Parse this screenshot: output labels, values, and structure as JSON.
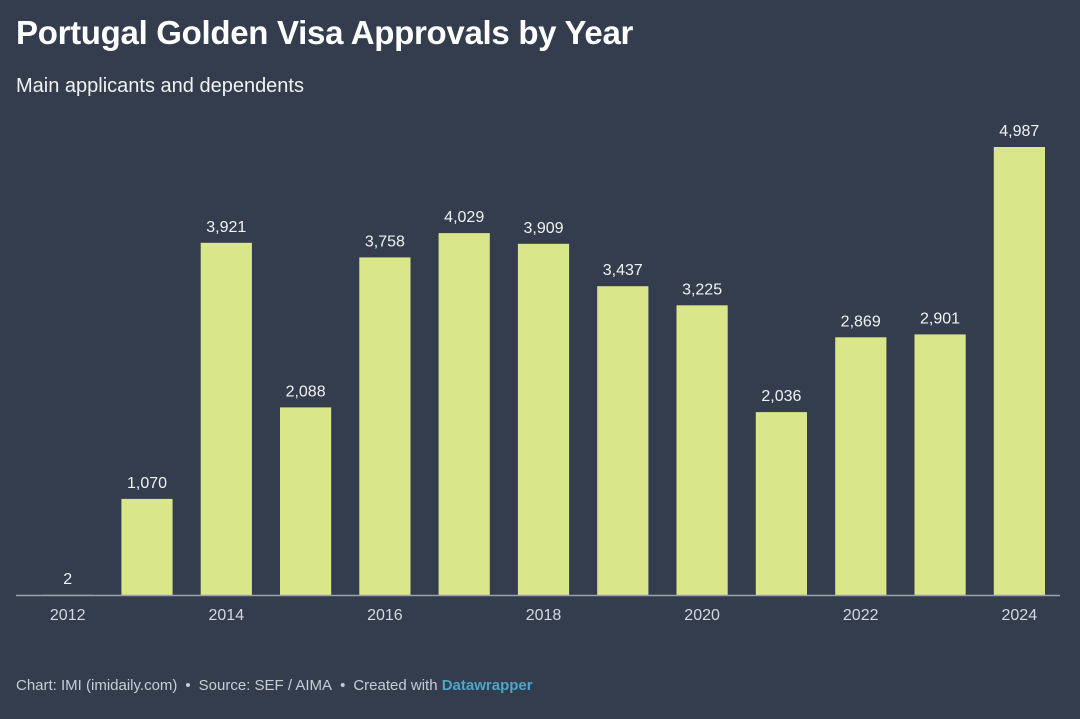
{
  "header": {
    "title": "Portugal Golden Visa Approvals by Year",
    "subtitle": "Main applicants and dependents"
  },
  "footer": {
    "chart_credit": "Chart: IMI (imidaily.com)",
    "separator": "•",
    "source": "Source: SEF / AIMA",
    "created_with": "Created with",
    "tool": "Datawrapper"
  },
  "colors": {
    "background": "#343d4e",
    "bar": "#d9e68a",
    "label": "#f2f2f2",
    "axis": "#9aa1ad",
    "link": "#4ea4c9"
  },
  "chart_data": {
    "type": "bar",
    "title": "Portugal Golden Visa Approvals by Year",
    "subtitle": "Main applicants and dependents",
    "categories": [
      "2012",
      "2013",
      "2014",
      "2015",
      "2016",
      "2017",
      "2018",
      "2019",
      "2020",
      "2021",
      "2022",
      "2023",
      "2024"
    ],
    "values": [
      2,
      1070,
      3921,
      2088,
      3758,
      4029,
      3909,
      3437,
      3225,
      2036,
      2869,
      2901,
      4987
    ],
    "value_labels": [
      "2",
      "1,070",
      "3,921",
      "2,088",
      "3,758",
      "4,029",
      "3,909",
      "3,437",
      "3,225",
      "2,036",
      "2,869",
      "2,901",
      "4,987"
    ],
    "x_tick_labels": [
      "2012",
      "2014",
      "2016",
      "2018",
      "2020",
      "2022",
      "2024"
    ],
    "xlabel": "",
    "ylabel": "",
    "ylim": [
      0,
      4987
    ],
    "grid": false,
    "legend": "none"
  }
}
